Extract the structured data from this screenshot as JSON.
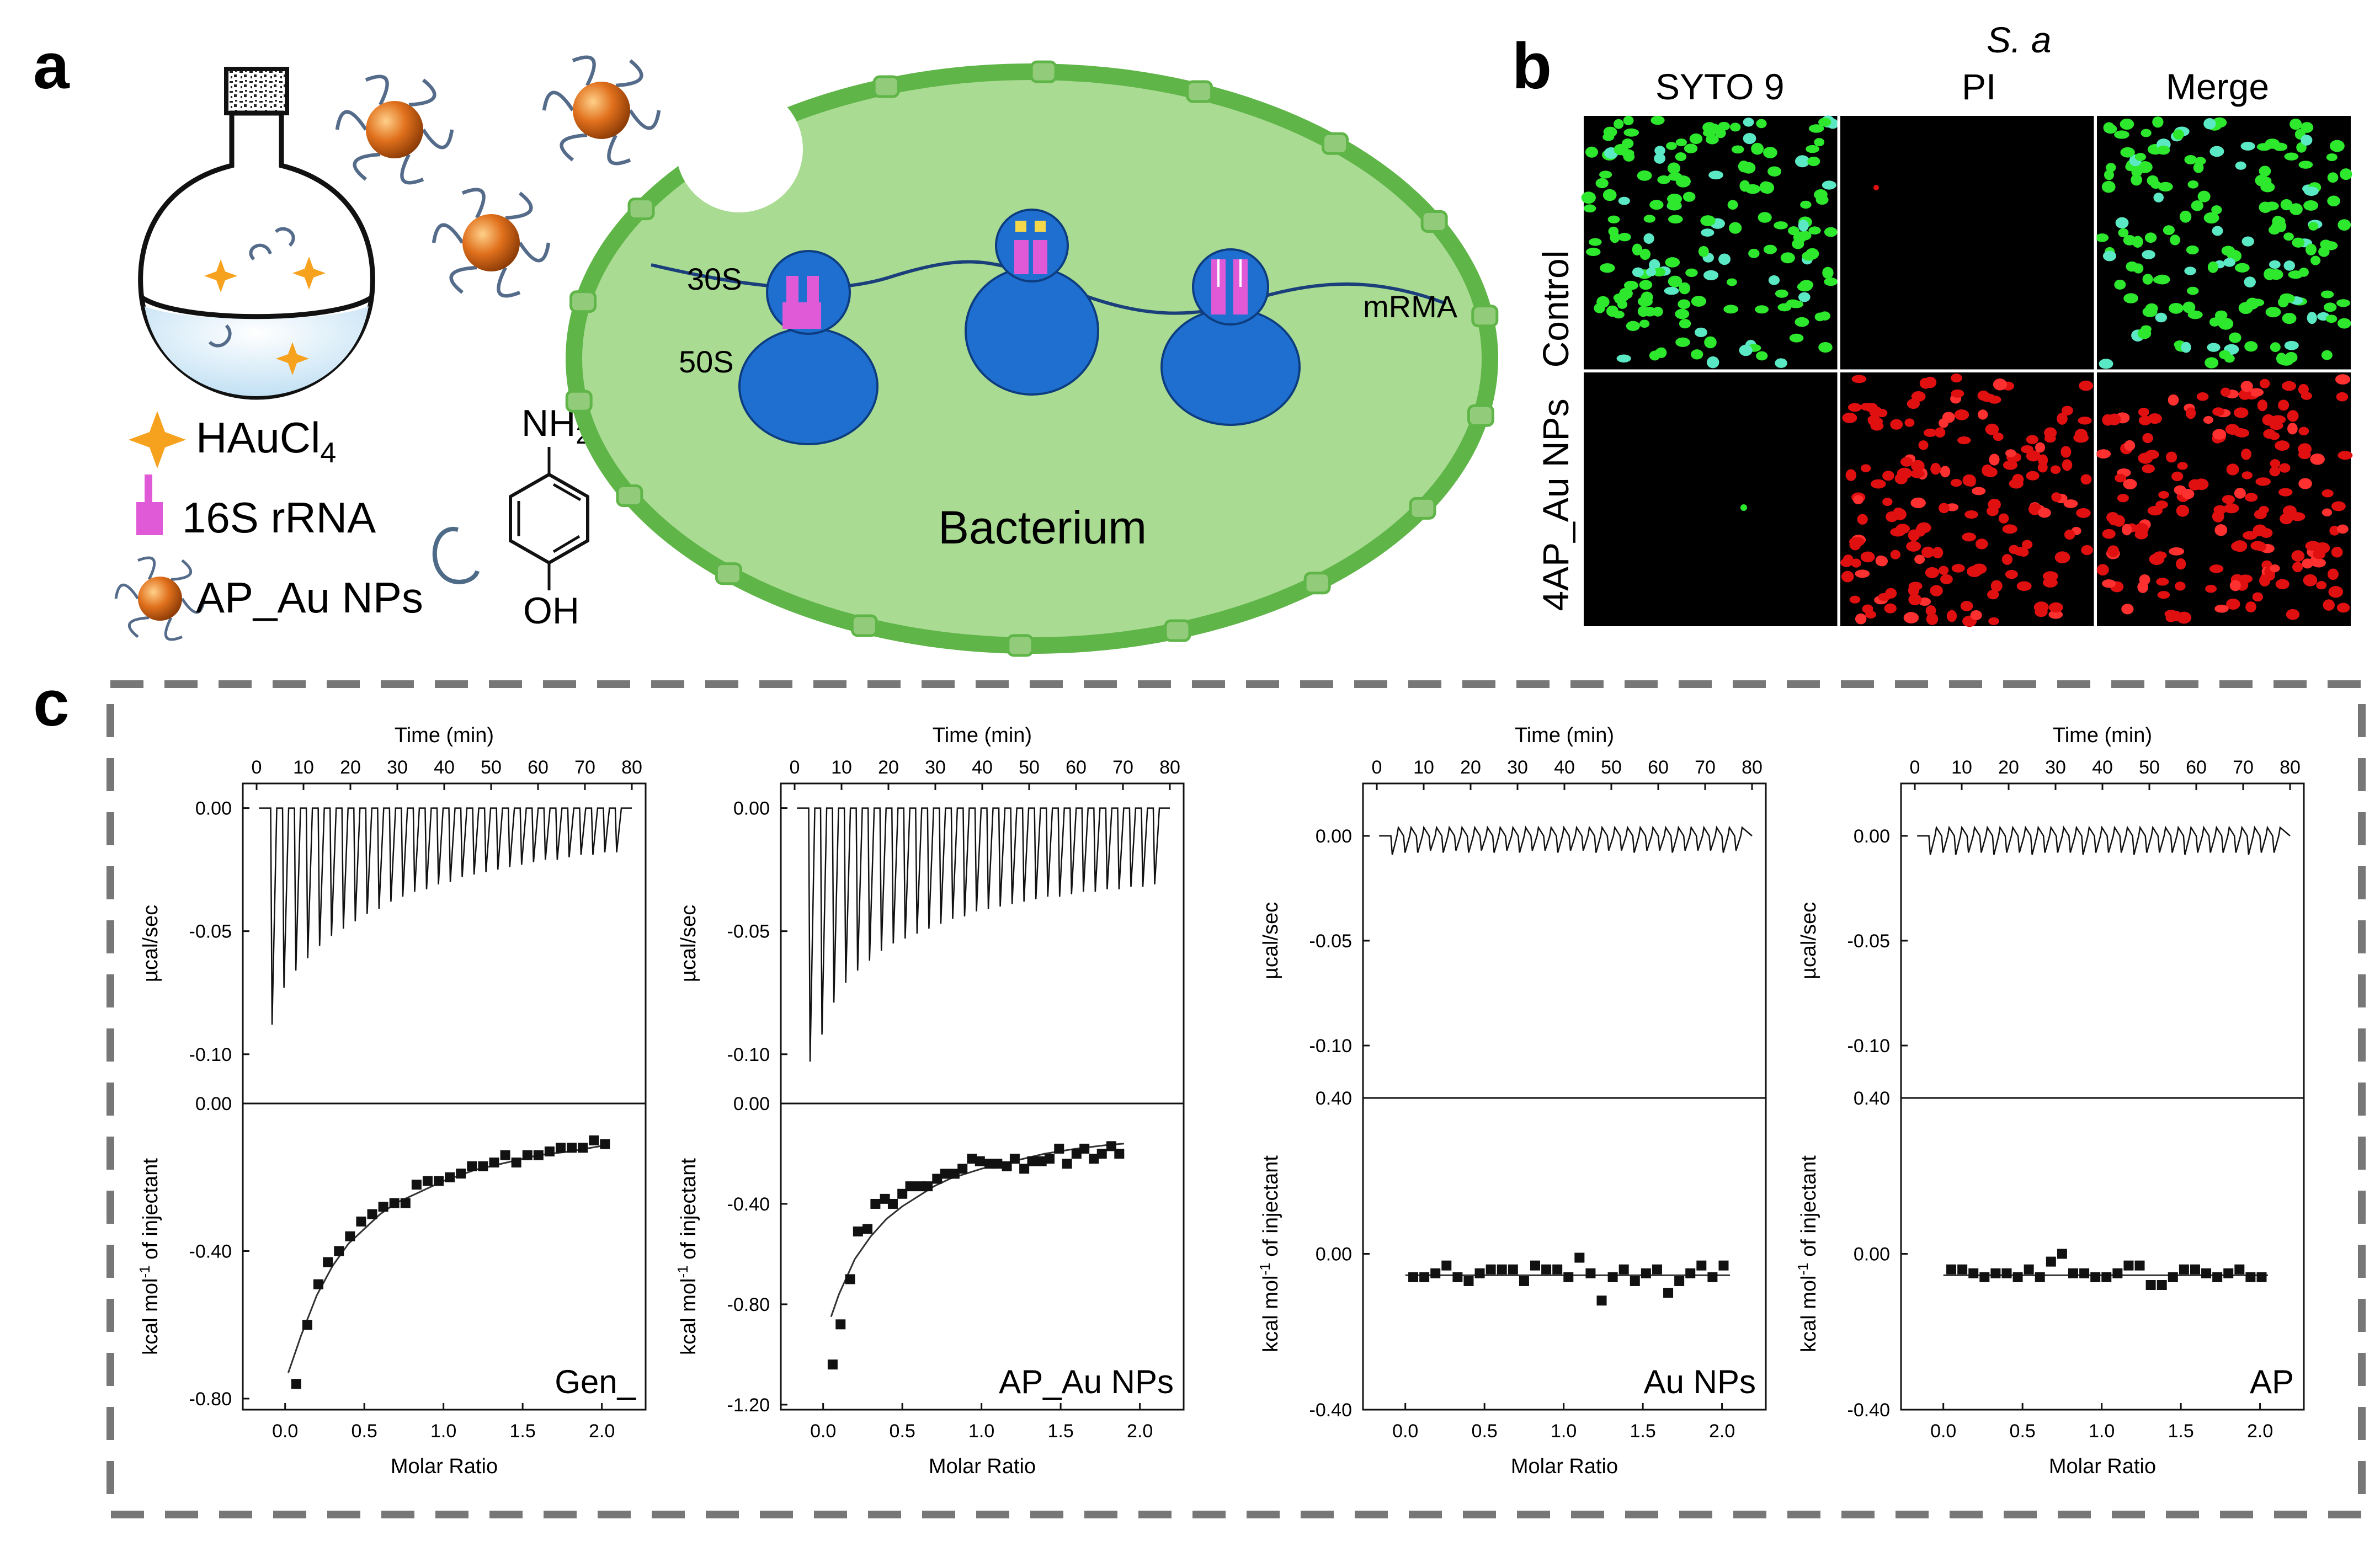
{
  "panel_a": {
    "letter": "a",
    "legend": {
      "hau_main": "HAuCl",
      "hau_sub": "4",
      "rrna": "16S rRNA",
      "apnp": "AP_Au NPs"
    },
    "molecule": {
      "nh": "NH",
      "nh_sub": "2",
      "oh": "OH"
    },
    "bacterium": {
      "label": "Bacterium",
      "s30": "30S",
      "s50": "50S",
      "mrna": "mRMA"
    },
    "colors": {
      "gold": "#e0701c",
      "ribosome": "#1f6fd0",
      "cell": "#a9dc92",
      "cell_edge": "#5fb548",
      "rrna": "#e05ad8"
    }
  },
  "panel_b": {
    "letter": "b",
    "species": "S. a",
    "columns": [
      "SYTO 9",
      "PI",
      "Merge"
    ],
    "rows": [
      "Control",
      "4AP_Au NPs"
    ]
  },
  "panel_c": {
    "letter": "c",
    "chart_data": [
      {
        "type": "line",
        "label": "Gen_",
        "top": {
          "xlabel": "Time (min)",
          "ylabel": "µcal/sec",
          "xticks": [
            0,
            10,
            20,
            30,
            40,
            50,
            60,
            70,
            80
          ],
          "yticks": [
            "0.00",
            "-0.05",
            "-0.10"
          ],
          "ylim": [
            -0.12,
            0.01
          ],
          "baseline": 0.0,
          "spikes": [
            -0.088,
            -0.073,
            -0.066,
            -0.061,
            -0.056,
            -0.052,
            -0.049,
            -0.046,
            -0.043,
            -0.041,
            -0.038,
            -0.036,
            -0.034,
            -0.033,
            -0.031,
            -0.03,
            -0.028,
            -0.027,
            -0.026,
            -0.025,
            -0.024,
            -0.023,
            -0.022,
            -0.021,
            -0.021,
            -0.02,
            -0.019,
            -0.019,
            -0.018,
            -0.018
          ]
        },
        "bottom": {
          "xlabel": "Molar Ratio",
          "ylabel": "kcal mol⁻¹ of injectant",
          "ylabel_main": "kcal mol",
          "ylabel_sup": "-1",
          "ylabel_tail": " of injectant",
          "xticks": [
            "0.0",
            "0.5",
            "1.0",
            "1.5",
            "2.0"
          ],
          "yticks": [
            "0.00",
            "-0.40",
            "-0.80"
          ],
          "ylim": [
            -0.83,
            0.0
          ],
          "points": [
            [
              0.07,
              -0.76
            ],
            [
              0.14,
              -0.6
            ],
            [
              0.21,
              -0.49
            ],
            [
              0.27,
              -0.43
            ],
            [
              0.34,
              -0.4
            ],
            [
              0.41,
              -0.36
            ],
            [
              0.48,
              -0.32
            ],
            [
              0.55,
              -0.3
            ],
            [
              0.62,
              -0.28
            ],
            [
              0.69,
              -0.27
            ],
            [
              0.76,
              -0.27
            ],
            [
              0.83,
              -0.22
            ],
            [
              0.9,
              -0.21
            ],
            [
              0.97,
              -0.21
            ],
            [
              1.04,
              -0.2
            ],
            [
              1.11,
              -0.19
            ],
            [
              1.18,
              -0.17
            ],
            [
              1.25,
              -0.17
            ],
            [
              1.32,
              -0.16
            ],
            [
              1.39,
              -0.14
            ],
            [
              1.46,
              -0.16
            ],
            [
              1.53,
              -0.14
            ],
            [
              1.6,
              -0.14
            ],
            [
              1.67,
              -0.13
            ],
            [
              1.74,
              -0.12
            ],
            [
              1.81,
              -0.12
            ],
            [
              1.88,
              -0.12
            ],
            [
              1.95,
              -0.1
            ],
            [
              2.02,
              -0.11
            ]
          ],
          "fit": [
            [
              0.02,
              -0.73
            ],
            [
              0.1,
              -0.63
            ],
            [
              0.2,
              -0.52
            ],
            [
              0.3,
              -0.44
            ],
            [
              0.4,
              -0.38
            ],
            [
              0.5,
              -0.34
            ],
            [
              0.6,
              -0.3
            ],
            [
              0.7,
              -0.27
            ],
            [
              0.8,
              -0.25
            ],
            [
              0.9,
              -0.23
            ],
            [
              1.0,
              -0.21
            ],
            [
              1.2,
              -0.18
            ],
            [
              1.4,
              -0.16
            ],
            [
              1.6,
              -0.14
            ],
            [
              1.8,
              -0.13
            ],
            [
              2.0,
              -0.115
            ]
          ]
        }
      },
      {
        "type": "line",
        "label": "AP_Au NPs",
        "top": {
          "xlabel": "Time (min)",
          "ylabel": "µcal/sec",
          "xticks": [
            0,
            10,
            20,
            30,
            40,
            50,
            60,
            70,
            80
          ],
          "yticks": [
            "0.00",
            "-0.05",
            "-0.10"
          ],
          "ylim": [
            -0.12,
            0.01
          ],
          "baseline": 0.0,
          "spikes": [
            -0.103,
            -0.092,
            -0.079,
            -0.071,
            -0.066,
            -0.062,
            -0.058,
            -0.055,
            -0.053,
            -0.051,
            -0.049,
            -0.047,
            -0.045,
            -0.044,
            -0.042,
            -0.041,
            -0.04,
            -0.039,
            -0.038,
            -0.037,
            -0.036,
            -0.036,
            -0.035,
            -0.034,
            -0.034,
            -0.033,
            -0.033,
            -0.032,
            -0.032,
            -0.031
          ]
        },
        "bottom": {
          "xlabel": "Molar Ratio",
          "ylabel": "kcal mol⁻¹ of injectant",
          "ylabel_main": "kcal mol",
          "ylabel_sup": "-1",
          "ylabel_tail": " of injectant",
          "xticks": [
            "0.0",
            "0.5",
            "1.0",
            "1.5",
            "2.0"
          ],
          "yticks": [
            "0.00",
            "-0.40",
            "-0.80",
            "-1.20"
          ],
          "ylim": [
            -1.22,
            0.0
          ],
          "points": [
            [
              0.06,
              -1.04
            ],
            [
              0.11,
              -0.88
            ],
            [
              0.17,
              -0.7
            ],
            [
              0.22,
              -0.51
            ],
            [
              0.28,
              -0.5
            ],
            [
              0.33,
              -0.4
            ],
            [
              0.39,
              -0.38
            ],
            [
              0.44,
              -0.4
            ],
            [
              0.5,
              -0.36
            ],
            [
              0.55,
              -0.33
            ],
            [
              0.61,
              -0.33
            ],
            [
              0.66,
              -0.33
            ],
            [
              0.72,
              -0.3
            ],
            [
              0.77,
              -0.28
            ],
            [
              0.83,
              -0.28
            ],
            [
              0.88,
              -0.26
            ],
            [
              0.94,
              -0.22
            ],
            [
              0.99,
              -0.23
            ],
            [
              1.05,
              -0.24
            ],
            [
              1.1,
              -0.24
            ],
            [
              1.16,
              -0.25
            ],
            [
              1.21,
              -0.22
            ],
            [
              1.27,
              -0.26
            ],
            [
              1.32,
              -0.23
            ],
            [
              1.38,
              -0.23
            ],
            [
              1.43,
              -0.22
            ],
            [
              1.49,
              -0.18
            ],
            [
              1.54,
              -0.24
            ],
            [
              1.6,
              -0.2
            ],
            [
              1.65,
              -0.18
            ],
            [
              1.71,
              -0.22
            ],
            [
              1.76,
              -0.2
            ],
            [
              1.82,
              -0.17
            ],
            [
              1.87,
              -0.2
            ]
          ],
          "fit": [
            [
              0.05,
              -0.85
            ],
            [
              0.1,
              -0.76
            ],
            [
              0.2,
              -0.62
            ],
            [
              0.3,
              -0.53
            ],
            [
              0.4,
              -0.46
            ],
            [
              0.5,
              -0.41
            ],
            [
              0.6,
              -0.37
            ],
            [
              0.7,
              -0.33
            ],
            [
              0.8,
              -0.3
            ],
            [
              0.9,
              -0.28
            ],
            [
              1.0,
              -0.26
            ],
            [
              1.2,
              -0.23
            ],
            [
              1.4,
              -0.2
            ],
            [
              1.6,
              -0.18
            ],
            [
              1.8,
              -0.165
            ],
            [
              1.9,
              -0.16
            ]
          ]
        }
      },
      {
        "type": "line",
        "label": "Au NPs",
        "top": {
          "xlabel": "Time (min)",
          "ylabel": "µcal/sec",
          "xticks": [
            0,
            10,
            20,
            30,
            40,
            50,
            60,
            70,
            80
          ],
          "yticks": [
            "0.00",
            "-0.05",
            "-0.10"
          ],
          "ylim": [
            -0.125,
            0.025
          ],
          "baseline": 0.0,
          "spikes": [
            -0.009,
            -0.008,
            -0.008,
            -0.007,
            -0.008,
            -0.007,
            -0.008,
            -0.007,
            -0.008,
            -0.007,
            -0.008,
            -0.007,
            -0.007,
            -0.008,
            -0.007,
            -0.007,
            -0.008,
            -0.007,
            -0.007,
            -0.008,
            -0.007,
            -0.007,
            -0.008,
            -0.007,
            -0.007,
            -0.007,
            -0.008,
            -0.007
          ]
        },
        "bottom": {
          "xlabel": "Molar Ratio",
          "ylabel": "kcal mol⁻¹ of injectant",
          "ylabel_main": "kcal mol",
          "ylabel_sup": "-1",
          "ylabel_tail": " of injectant",
          "xticks": [
            "0.0",
            "0.5",
            "1.0",
            "1.5",
            "2.0"
          ],
          "yticks": [
            "0.40",
            "0.00",
            "-0.40"
          ],
          "ylim": [
            -0.4,
            0.4
          ],
          "points": [
            [
              0.05,
              -0.06
            ],
            [
              0.12,
              -0.06
            ],
            [
              0.19,
              -0.05
            ],
            [
              0.26,
              -0.03
            ],
            [
              0.33,
              -0.06
            ],
            [
              0.4,
              -0.07
            ],
            [
              0.47,
              -0.05
            ],
            [
              0.54,
              -0.04
            ],
            [
              0.61,
              -0.04
            ],
            [
              0.68,
              -0.04
            ],
            [
              0.75,
              -0.07
            ],
            [
              0.82,
              -0.03
            ],
            [
              0.89,
              -0.04
            ],
            [
              0.96,
              -0.04
            ],
            [
              1.03,
              -0.06
            ],
            [
              1.1,
              -0.01
            ],
            [
              1.17,
              -0.05
            ],
            [
              1.24,
              -0.12
            ],
            [
              1.31,
              -0.06
            ],
            [
              1.38,
              -0.04
            ],
            [
              1.45,
              -0.07
            ],
            [
              1.52,
              -0.05
            ],
            [
              1.59,
              -0.04
            ],
            [
              1.66,
              -0.1
            ],
            [
              1.73,
              -0.07
            ],
            [
              1.8,
              -0.05
            ],
            [
              1.87,
              -0.03
            ],
            [
              1.94,
              -0.06
            ],
            [
              2.01,
              -0.03
            ]
          ],
          "fit": [
            [
              0.0,
              -0.055
            ],
            [
              2.05,
              -0.055
            ]
          ]
        }
      },
      {
        "type": "line",
        "label": "AP",
        "top": {
          "xlabel": "Time (min)",
          "ylabel": "µcal/sec",
          "xticks": [
            0,
            10,
            20,
            30,
            40,
            50,
            60,
            70,
            80
          ],
          "yticks": [
            "0.00",
            "-0.05",
            "-0.10"
          ],
          "ylim": [
            -0.125,
            0.025
          ],
          "baseline": 0.0,
          "spikes": [
            -0.009,
            -0.008,
            -0.009,
            -0.008,
            -0.008,
            -0.009,
            -0.008,
            -0.008,
            -0.009,
            -0.008,
            -0.008,
            -0.008,
            -0.009,
            -0.008,
            -0.008,
            -0.008,
            -0.009,
            -0.008,
            -0.008,
            -0.008,
            -0.009,
            -0.008,
            -0.008,
            -0.008,
            -0.008,
            -0.009,
            -0.008,
            -0.008
          ]
        },
        "bottom": {
          "xlabel": "Molar Ratio",
          "ylabel": "kcal mol⁻¹ of injectant",
          "ylabel_main": "kcal mol",
          "ylabel_sup": "-1",
          "ylabel_tail": " of injectant",
          "xticks": [
            "0.0",
            "0.5",
            "1.0",
            "1.5",
            "2.0"
          ],
          "yticks": [
            "0.40",
            "0.00",
            "-0.40"
          ],
          "ylim": [
            -0.4,
            0.4
          ],
          "points": [
            [
              0.05,
              -0.04
            ],
            [
              0.12,
              -0.04
            ],
            [
              0.19,
              -0.05
            ],
            [
              0.26,
              -0.06
            ],
            [
              0.33,
              -0.05
            ],
            [
              0.4,
              -0.05
            ],
            [
              0.47,
              -0.06
            ],
            [
              0.54,
              -0.04
            ],
            [
              0.61,
              -0.06
            ],
            [
              0.68,
              -0.02
            ],
            [
              0.75,
              0.0
            ],
            [
              0.82,
              -0.05
            ],
            [
              0.89,
              -0.05
            ],
            [
              0.96,
              -0.06
            ],
            [
              1.03,
              -0.06
            ],
            [
              1.1,
              -0.05
            ],
            [
              1.17,
              -0.03
            ],
            [
              1.24,
              -0.03
            ],
            [
              1.31,
              -0.08
            ],
            [
              1.38,
              -0.08
            ],
            [
              1.45,
              -0.06
            ],
            [
              1.52,
              -0.04
            ],
            [
              1.59,
              -0.04
            ],
            [
              1.66,
              -0.05
            ],
            [
              1.73,
              -0.06
            ],
            [
              1.8,
              -0.05
            ],
            [
              1.87,
              -0.04
            ],
            [
              1.94,
              -0.06
            ],
            [
              2.01,
              -0.06
            ]
          ],
          "fit": [
            [
              0.0,
              -0.055
            ],
            [
              2.05,
              -0.055
            ]
          ]
        }
      }
    ]
  }
}
